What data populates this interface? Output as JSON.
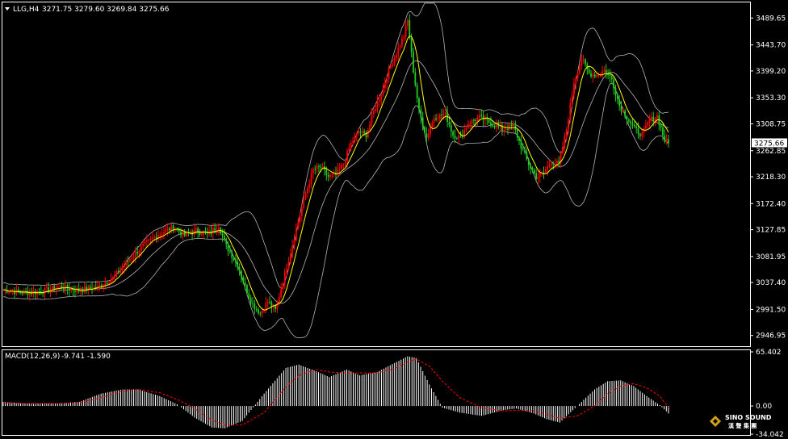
{
  "header": {
    "symbol_label": "LLG,H4",
    "ohlc_text": "3271.75 3279.60 3269.84 3275.66"
  },
  "macd": {
    "label": "MACD(12,26,9)",
    "values_text": "-9.741 -1.590"
  },
  "current_price_label": "3275.66",
  "logo": {
    "line1": "SINO SOUND",
    "line2": "漢 聲 集 團"
  },
  "colors": {
    "background": "#000000",
    "up_candle": "#ff0000",
    "down_candle": "#22cc22",
    "bollinger": "#b4b4b4",
    "ma": "#ffff00",
    "macd_hist": "#ffffff",
    "macd_signal": "#ff0000",
    "frame": "#ffffff"
  },
  "chart_data": [
    {
      "type": "candlestick",
      "title": "LLG,H4",
      "ylim": [
        2930,
        3515
      ],
      "y_ticks": [
        "3489.65",
        "3443.70",
        "3399.20",
        "3353.30",
        "3308.75",
        "3262.85",
        "3218.30",
        "3172.40",
        "3127.85",
        "3081.95",
        "3037.40",
        "2991.50",
        "2946.95"
      ],
      "y_tick_values": [
        3489.65,
        3443.7,
        3399.2,
        3353.3,
        3308.75,
        3262.85,
        3218.3,
        3172.4,
        3127.85,
        3081.95,
        3037.4,
        2991.5,
        2946.95
      ],
      "current_price": 3275.66,
      "overlays": [
        "Bollinger Bands",
        "Moving Average"
      ],
      "close_path": [
        [
          0,
          3025
        ],
        [
          10,
          3020
        ],
        [
          20,
          3022
        ],
        [
          30,
          3030
        ],
        [
          40,
          3024
        ],
        [
          50,
          3030
        ],
        [
          58,
          3045
        ],
        [
          66,
          3075
        ],
        [
          74,
          3100
        ],
        [
          82,
          3120
        ],
        [
          90,
          3132
        ],
        [
          96,
          3118
        ],
        [
          102,
          3126
        ],
        [
          108,
          3120
        ],
        [
          114,
          3135
        ],
        [
          118,
          3100
        ],
        [
          124,
          3068
        ],
        [
          128,
          3030
        ],
        [
          132,
          3000
        ],
        [
          136,
          2985
        ],
        [
          140,
          3005
        ],
        [
          144,
          2990
        ],
        [
          148,
          3040
        ],
        [
          152,
          3090
        ],
        [
          156,
          3140
        ],
        [
          160,
          3190
        ],
        [
          164,
          3230
        ],
        [
          168,
          3235
        ],
        [
          172,
          3218
        ],
        [
          176,
          3222
        ],
        [
          180,
          3240
        ],
        [
          184,
          3275
        ],
        [
          188,
          3295
        ],
        [
          192,
          3290
        ],
        [
          196,
          3330
        ],
        [
          200,
          3360
        ],
        [
          204,
          3400
        ],
        [
          208,
          3430
        ],
        [
          212,
          3460
        ],
        [
          214,
          3485
        ],
        [
          217,
          3400
        ],
        [
          220,
          3330
        ],
        [
          224,
          3285
        ],
        [
          228,
          3320
        ],
        [
          234,
          3325
        ],
        [
          238,
          3290
        ],
        [
          242,
          3285
        ],
        [
          246,
          3310
        ],
        [
          252,
          3320
        ],
        [
          258,
          3310
        ],
        [
          264,
          3300
        ],
        [
          270,
          3305
        ],
        [
          274,
          3270
        ],
        [
          278,
          3240
        ],
        [
          282,
          3218
        ],
        [
          286,
          3225
        ],
        [
          290,
          3245
        ],
        [
          294,
          3240
        ],
        [
          298,
          3300
        ],
        [
          302,
          3380
        ],
        [
          306,
          3420
        ],
        [
          310,
          3395
        ],
        [
          314,
          3392
        ],
        [
          318,
          3400
        ],
        [
          322,
          3385
        ],
        [
          326,
          3340
        ],
        [
          330,
          3320
        ],
        [
          334,
          3300
        ],
        [
          338,
          3290
        ],
        [
          342,
          3315
        ],
        [
          346,
          3322
        ],
        [
          350,
          3280
        ],
        [
          352,
          3276
        ]
      ]
    },
    {
      "type": "bar",
      "title": "MACD(12,26,9)",
      "ylim": [
        -34.042,
        65.402
      ],
      "y_ticks": [
        "65.402",
        "0.00",
        "-34.042"
      ],
      "y_tick_values": [
        65.402,
        0,
        -34.042
      ],
      "macd_value": -9.741,
      "signal_value": -1.59,
      "macd_path": [
        [
          0,
          5
        ],
        [
          10,
          3
        ],
        [
          25,
          3
        ],
        [
          35,
          5
        ],
        [
          45,
          15
        ],
        [
          55,
          20
        ],
        [
          62,
          20
        ],
        [
          72,
          12
        ],
        [
          80,
          2
        ],
        [
          88,
          -14
        ],
        [
          96,
          -26
        ],
        [
          102,
          -27
        ],
        [
          110,
          -18
        ],
        [
          120,
          15
        ],
        [
          130,
          46
        ],
        [
          136,
          50
        ],
        [
          144,
          42
        ],
        [
          150,
          35
        ],
        [
          158,
          44
        ],
        [
          164,
          37
        ],
        [
          172,
          41
        ],
        [
          180,
          52
        ],
        [
          186,
          60
        ],
        [
          190,
          58
        ],
        [
          196,
          26
        ],
        [
          202,
          -2
        ],
        [
          210,
          -8
        ],
        [
          220,
          -12
        ],
        [
          230,
          -5
        ],
        [
          236,
          -3
        ],
        [
          244,
          -9
        ],
        [
          250,
          -16
        ],
        [
          256,
          -20
        ],
        [
          264,
          0
        ],
        [
          272,
          20
        ],
        [
          278,
          30
        ],
        [
          284,
          31
        ],
        [
          290,
          24
        ],
        [
          296,
          12
        ],
        [
          302,
          1
        ],
        [
          306,
          -9
        ]
      ],
      "signal_path": [
        [
          0,
          4
        ],
        [
          10,
          3
        ],
        [
          25,
          3
        ],
        [
          35,
          4
        ],
        [
          45,
          10
        ],
        [
          55,
          18
        ],
        [
          62,
          20
        ],
        [
          72,
          16
        ],
        [
          80,
          8
        ],
        [
          88,
          -3
        ],
        [
          96,
          -17
        ],
        [
          102,
          -23
        ],
        [
          110,
          -23
        ],
        [
          120,
          -8
        ],
        [
          130,
          23
        ],
        [
          136,
          37
        ],
        [
          144,
          44
        ],
        [
          150,
          41
        ],
        [
          158,
          40
        ],
        [
          164,
          40
        ],
        [
          172,
          40
        ],
        [
          180,
          45
        ],
        [
          186,
          53
        ],
        [
          190,
          57
        ],
        [
          196,
          48
        ],
        [
          202,
          30
        ],
        [
          210,
          10
        ],
        [
          220,
          -2
        ],
        [
          230,
          -6
        ],
        [
          236,
          -5
        ],
        [
          244,
          -6
        ],
        [
          250,
          -10
        ],
        [
          256,
          -15
        ],
        [
          264,
          -12
        ],
        [
          272,
          0
        ],
        [
          278,
          15
        ],
        [
          284,
          24
        ],
        [
          290,
          27
        ],
        [
          296,
          22
        ],
        [
          302,
          12
        ],
        [
          306,
          -2
        ]
      ]
    }
  ]
}
